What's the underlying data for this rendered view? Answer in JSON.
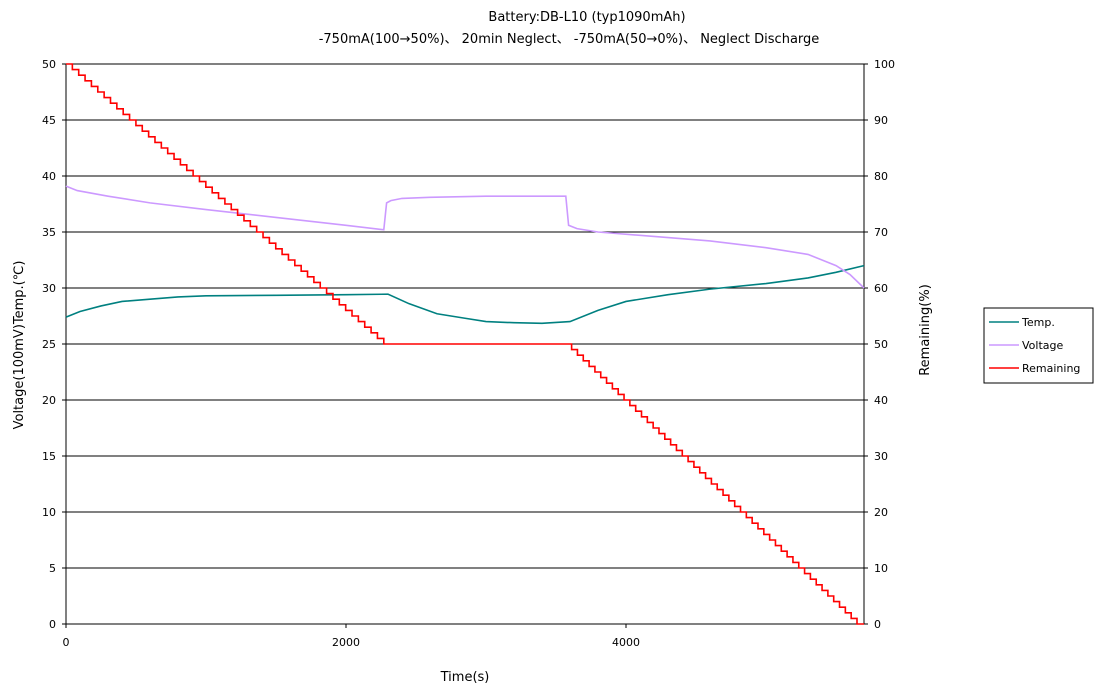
{
  "chart_data": {
    "type": "line",
    "title": "Battery:DB-L10 (typ1090mAh)",
    "subtitle": "-750mA(100→50%)、 20min Neglect、 -750mA(50→0%)、 Neglect Discharge",
    "xlabel": "Time(s)",
    "ylabel_left": "Voltage(100mV)Temp.(℃)",
    "ylabel_right": "Remaining(%)",
    "xlim": [
      0,
      5700
    ],
    "ylim_left": [
      0,
      50
    ],
    "ylim_right": [
      0,
      100
    ],
    "x_ticks": [
      0,
      2000,
      4000
    ],
    "x_tick_labels": [
      "0",
      "2000",
      "4000"
    ],
    "y_left_ticks": [
      0,
      5,
      10,
      15,
      20,
      25,
      30,
      35,
      40,
      45,
      50
    ],
    "y_left_tick_labels": [
      "0",
      "5",
      "10",
      "15",
      "20",
      "25",
      "30",
      "35",
      "40",
      "45",
      "50"
    ],
    "y_right_ticks": [
      0,
      10,
      20,
      30,
      40,
      50,
      60,
      70,
      80,
      90,
      100
    ],
    "y_right_tick_labels": [
      "0",
      "10",
      "20",
      "30",
      "40",
      "50",
      "60",
      "70",
      "80",
      "90",
      "100"
    ],
    "grid": "horizontal",
    "legend_position": "right",
    "series": [
      {
        "name": "Temp.",
        "axis": "left",
        "color": "#008080",
        "x": [
          0,
          100,
          250,
          400,
          600,
          800,
          1000,
          1500,
          2000,
          2300,
          2450,
          2650,
          2850,
          3000,
          3200,
          3400,
          3600,
          3800,
          4000,
          4300,
          4600,
          5000,
          5300,
          5500,
          5700
        ],
        "y": [
          27.4,
          27.9,
          28.4,
          28.8,
          29.0,
          29.2,
          29.3,
          29.35,
          29.4,
          29.45,
          28.6,
          27.7,
          27.3,
          27.0,
          26.9,
          26.85,
          27.0,
          28.0,
          28.8,
          29.4,
          29.9,
          30.4,
          30.9,
          31.4,
          32.0
        ]
      },
      {
        "name": "Voltage",
        "axis": "left",
        "color": "#CC99FF",
        "x": [
          0,
          80,
          300,
          600,
          1000,
          1500,
          2000,
          2270,
          2290,
          2320,
          2400,
          2600,
          3000,
          3400,
          3570,
          3590,
          3650,
          3800,
          4200,
          4600,
          5000,
          5300,
          5500,
          5600,
          5700
        ],
        "y": [
          39.1,
          38.7,
          38.2,
          37.6,
          37.0,
          36.3,
          35.6,
          35.2,
          37.6,
          37.8,
          38.0,
          38.1,
          38.2,
          38.2,
          38.2,
          35.6,
          35.3,
          35.0,
          34.6,
          34.2,
          33.6,
          33.0,
          32.0,
          31.2,
          30.0
        ]
      },
      {
        "name": "Remaining",
        "axis": "right",
        "color": "#FF0000",
        "shape": "stepped",
        "x": [
          0,
          2270,
          3570,
          5650,
          5700
        ],
        "y": [
          100,
          50,
          50,
          0,
          0
        ]
      }
    ]
  }
}
